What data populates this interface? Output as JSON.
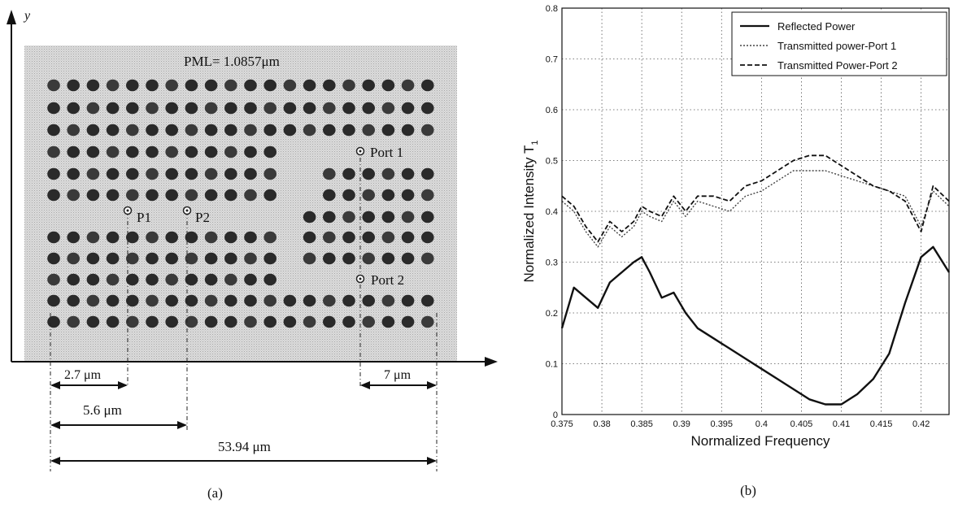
{
  "panel_a": {
    "y_axis_label": "y",
    "pml_label": "PML= 1.0857μm",
    "port1_label": "Port 1",
    "port2_label": "Port 2",
    "p1_label": "P1",
    "p2_label": "P2",
    "dim_1": "2.7 μm",
    "dim_2": "5.6 μm",
    "dim_3": "53.94 μm",
    "dim_4": "7 μm",
    "caption": "(a)"
  },
  "panel_b": {
    "caption": "(b)"
  },
  "chart_data": {
    "type": "line",
    "title": "",
    "xlabel": "Normalized Frequency",
    "ylabel": "Normalized Intensity  T",
    "ylabel_sub": "1",
    "xlim": [
      0.375,
      0.4235
    ],
    "ylim": [
      0,
      0.8
    ],
    "grid": true,
    "legend_position": "top-right",
    "x_ticks": [
      0.375,
      0.38,
      0.385,
      0.39,
      0.395,
      0.4,
      0.405,
      0.41,
      0.415,
      0.42
    ],
    "x_tick_labels": [
      "0.375",
      "0.38",
      "0.385",
      "0.39",
      "0.395",
      "0.4",
      "0.405",
      "0.41",
      "0.415",
      "0.42"
    ],
    "y_ticks": [
      0,
      0.1,
      0.2,
      0.3,
      0.4,
      0.5,
      0.6,
      0.7,
      0.8
    ],
    "y_tick_labels": [
      "0",
      "0.1",
      "0.2",
      "0.3",
      "0.4",
      "0.5",
      "0.6",
      "0.7",
      "0.8"
    ],
    "x": [
      0.375,
      0.3765,
      0.378,
      0.3795,
      0.381,
      0.3825,
      0.384,
      0.385,
      0.386,
      0.3875,
      0.389,
      0.3905,
      0.392,
      0.394,
      0.396,
      0.398,
      0.4,
      0.402,
      0.404,
      0.406,
      0.408,
      0.41,
      0.412,
      0.414,
      0.416,
      0.418,
      0.42,
      0.4215,
      0.4235
    ],
    "series": [
      {
        "name": "Reflected Power",
        "style": "solid",
        "values": [
          0.17,
          0.25,
          0.23,
          0.21,
          0.26,
          0.28,
          0.3,
          0.31,
          0.28,
          0.23,
          0.24,
          0.2,
          0.17,
          0.15,
          0.13,
          0.11,
          0.09,
          0.07,
          0.05,
          0.03,
          0.02,
          0.02,
          0.04,
          0.07,
          0.12,
          0.22,
          0.31,
          0.33,
          0.28
        ]
      },
      {
        "name": "Transmitted power-Port 1",
        "style": "dotted",
        "values": [
          0.42,
          0.4,
          0.36,
          0.33,
          0.37,
          0.35,
          0.37,
          0.4,
          0.39,
          0.38,
          0.42,
          0.39,
          0.42,
          0.41,
          0.4,
          0.43,
          0.44,
          0.46,
          0.48,
          0.48,
          0.48,
          0.47,
          0.46,
          0.45,
          0.44,
          0.43,
          0.37,
          0.44,
          0.41
        ]
      },
      {
        "name": "Transmitted Power-Port 2",
        "style": "dashed",
        "values": [
          0.43,
          0.41,
          0.37,
          0.34,
          0.38,
          0.36,
          0.38,
          0.41,
          0.4,
          0.39,
          0.43,
          0.4,
          0.43,
          0.43,
          0.42,
          0.45,
          0.46,
          0.48,
          0.5,
          0.51,
          0.51,
          0.49,
          0.47,
          0.45,
          0.44,
          0.42,
          0.36,
          0.45,
          0.42
        ]
      }
    ]
  }
}
